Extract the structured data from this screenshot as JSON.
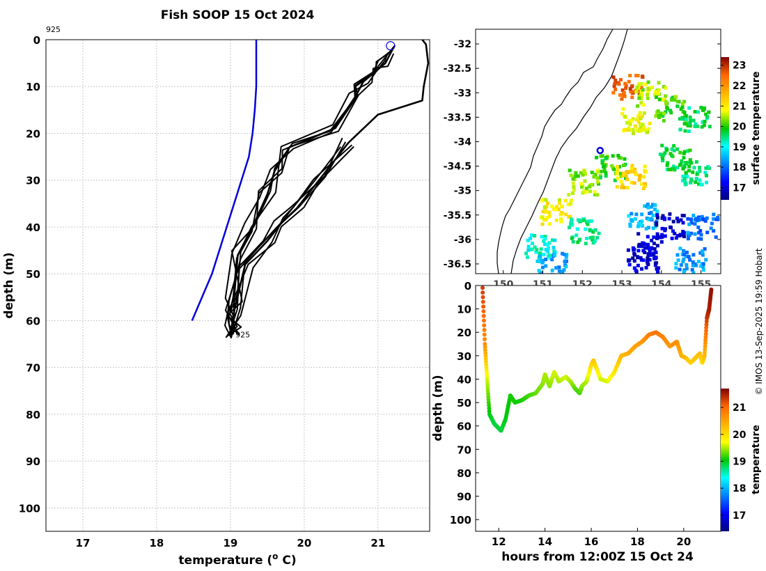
{
  "figure": {
    "title": "Fish SOOP 15 Oct 2024",
    "credit": "© IMOS 13-Sep-2025 19:59 Hobart",
    "station_label": "925"
  },
  "chart_data": [
    {
      "type": "line",
      "name": "profile",
      "xlabel": "temperature (",
      "xlabel_sup": "o",
      "xlabel_unit": " C)",
      "ylabel": "depth (m)",
      "xlim": [
        16.5,
        21.7
      ],
      "ylim": [
        0,
        105
      ],
      "y_reversed": true,
      "grid": true,
      "xticks": [
        17,
        18,
        19,
        20,
        21
      ],
      "yticks": [
        0,
        10,
        20,
        30,
        40,
        50,
        60,
        70,
        80,
        90,
        100
      ],
      "series": [
        {
          "name": "climatology",
          "color": "#0000dd",
          "x": [
            19.35,
            19.35,
            19.33,
            19.3,
            19.25,
            19.15,
            18.95,
            18.75,
            18.48
          ],
          "y": [
            0,
            10,
            15,
            20,
            25,
            30,
            40,
            50,
            60
          ]
        },
        {
          "name": "fish-track-profiles",
          "color": "#000000",
          "x": [
            21.2,
            21.1,
            20.95,
            20.8,
            20.7,
            20.4,
            19.8,
            19.6,
            19.5,
            19.3,
            19.1,
            19.05,
            19.05,
            19.03,
            19.0,
            19.05,
            19.2,
            19.5,
            19.7,
            19.9,
            20.2,
            20.6,
            21.0,
            21.6,
            21.62,
            21.68,
            21.65,
            21.6
          ],
          "y": [
            2,
            5,
            7,
            9,
            12,
            19,
            23,
            28,
            33,
            40,
            46,
            55,
            59,
            62,
            63,
            58,
            48,
            43,
            39,
            36,
            30,
            22,
            16,
            13,
            10,
            5,
            1,
            0
          ]
        }
      ],
      "annotations": [
        {
          "text": "925",
          "x": 16.5,
          "y": -2.5
        },
        {
          "text": "925",
          "x": 19.05,
          "y": 63
        }
      ],
      "marker": {
        "shape": "circle",
        "color": "#0000dd",
        "x": 21.17,
        "y": 1.3
      }
    },
    {
      "type": "heatmap",
      "name": "sst-map",
      "xlim": [
        149.3,
        155.5
      ],
      "ylim": [
        -36.7,
        -31.7
      ],
      "xticks": [
        150,
        151,
        152,
        153,
        154,
        155
      ],
      "yticks": [
        -32,
        -32.5,
        -33,
        -33.5,
        -34,
        -34.5,
        -35,
        -35.5,
        -36,
        -36.5
      ],
      "colorbar": {
        "label": "surface temperature",
        "range": [
          16.4,
          23.4
        ],
        "ticks": [
          17,
          18,
          19,
          20,
          21,
          22,
          23
        ]
      },
      "location_marker": {
        "lon": 152.45,
        "lat": -34.18
      },
      "patches": [
        {
          "lon": 153.1,
          "lat": -32.85,
          "temp": 22.6
        },
        {
          "lon": 153.7,
          "lat": -33.0,
          "temp": 20.5
        },
        {
          "lon": 154.2,
          "lat": -33.3,
          "temp": 20.1
        },
        {
          "lon": 154.8,
          "lat": -33.5,
          "temp": 19.6
        },
        {
          "lon": 153.3,
          "lat": -33.55,
          "temp": 20.8
        },
        {
          "lon": 152.7,
          "lat": -34.5,
          "temp": 20.0
        },
        {
          "lon": 153.2,
          "lat": -34.7,
          "temp": 21.2
        },
        {
          "lon": 154.3,
          "lat": -34.3,
          "temp": 19.7
        },
        {
          "lon": 154.8,
          "lat": -34.6,
          "temp": 19.5
        },
        {
          "lon": 152.0,
          "lat": -34.8,
          "temp": 20.4
        },
        {
          "lon": 151.3,
          "lat": -35.4,
          "temp": 20.9
        },
        {
          "lon": 152.0,
          "lat": -35.8,
          "temp": 19.4
        },
        {
          "lon": 153.5,
          "lat": -35.5,
          "temp": 18.5
        },
        {
          "lon": 153.6,
          "lat": -36.1,
          "temp": 16.8
        },
        {
          "lon": 154.2,
          "lat": -35.7,
          "temp": 16.9
        },
        {
          "lon": 155.0,
          "lat": -35.7,
          "temp": 18.1
        },
        {
          "lon": 153.5,
          "lat": -36.4,
          "temp": 17.0
        },
        {
          "lon": 150.9,
          "lat": -36.1,
          "temp": 19.1
        },
        {
          "lon": 151.2,
          "lat": -36.5,
          "temp": 18.4
        },
        {
          "lon": 154.7,
          "lat": -36.4,
          "temp": 18.3
        }
      ]
    },
    {
      "type": "scatter",
      "name": "depth-time",
      "xlabel": "hours from 12:00Z 15 Oct 24",
      "ylabel": "depth (m)",
      "xlim": [
        11.0,
        21.6
      ],
      "ylim": [
        0,
        105
      ],
      "y_reversed": true,
      "xticks": [
        12,
        14,
        16,
        18,
        20
      ],
      "yticks": [
        0,
        10,
        20,
        30,
        40,
        50,
        60,
        70,
        80,
        90,
        100
      ],
      "colorbar": {
        "label": "temperature",
        "range": [
          16.4,
          21.7
        ],
        "ticks": [
          17,
          18,
          19,
          20,
          21
        ]
      },
      "track": {
        "hours": [
          11.3,
          11.4,
          11.5,
          11.6,
          11.8,
          12.0,
          12.1,
          12.3,
          12.5,
          12.7,
          13.0,
          13.3,
          13.6,
          13.9,
          14.0,
          14.2,
          14.4,
          14.6,
          14.9,
          15.1,
          15.3,
          15.5,
          15.6,
          15.8,
          16.0,
          16.1,
          16.4,
          16.7,
          17.0,
          17.3,
          17.6,
          17.9,
          18.2,
          18.5,
          18.8,
          19.1,
          19.4,
          19.7,
          19.9,
          20.1,
          20.3,
          20.5,
          20.7,
          20.8,
          20.9,
          21.0,
          21.05,
          21.1,
          21.2
        ],
        "depth": [
          1,
          25,
          40,
          55,
          59,
          61,
          62,
          57,
          47,
          50,
          49,
          47,
          46,
          42,
          38,
          43,
          37,
          41,
          39,
          41,
          44,
          46,
          43,
          41,
          34,
          32,
          40,
          41,
          37,
          30,
          29,
          26,
          24,
          21,
          20,
          22,
          26,
          24,
          30,
          31,
          33,
          31,
          29,
          33,
          30,
          14,
          12,
          10,
          1
        ],
        "temps": [
          21.3,
          20.7,
          19.6,
          19.0,
          18.9,
          18.9,
          18.9,
          19.0,
          19.1,
          19.1,
          19.1,
          19.2,
          19.3,
          19.4,
          19.5,
          19.4,
          19.6,
          19.5,
          19.6,
          19.5,
          19.3,
          19.2,
          19.4,
          19.5,
          20.0,
          20.2,
          19.6,
          19.6,
          19.9,
          20.3,
          20.4,
          20.5,
          20.6,
          20.8,
          20.9,
          20.8,
          20.6,
          20.7,
          20.4,
          20.3,
          20.1,
          20.2,
          20.3,
          20.0,
          20.3,
          21.3,
          21.4,
          21.5,
          21.6
        ]
      }
    }
  ]
}
